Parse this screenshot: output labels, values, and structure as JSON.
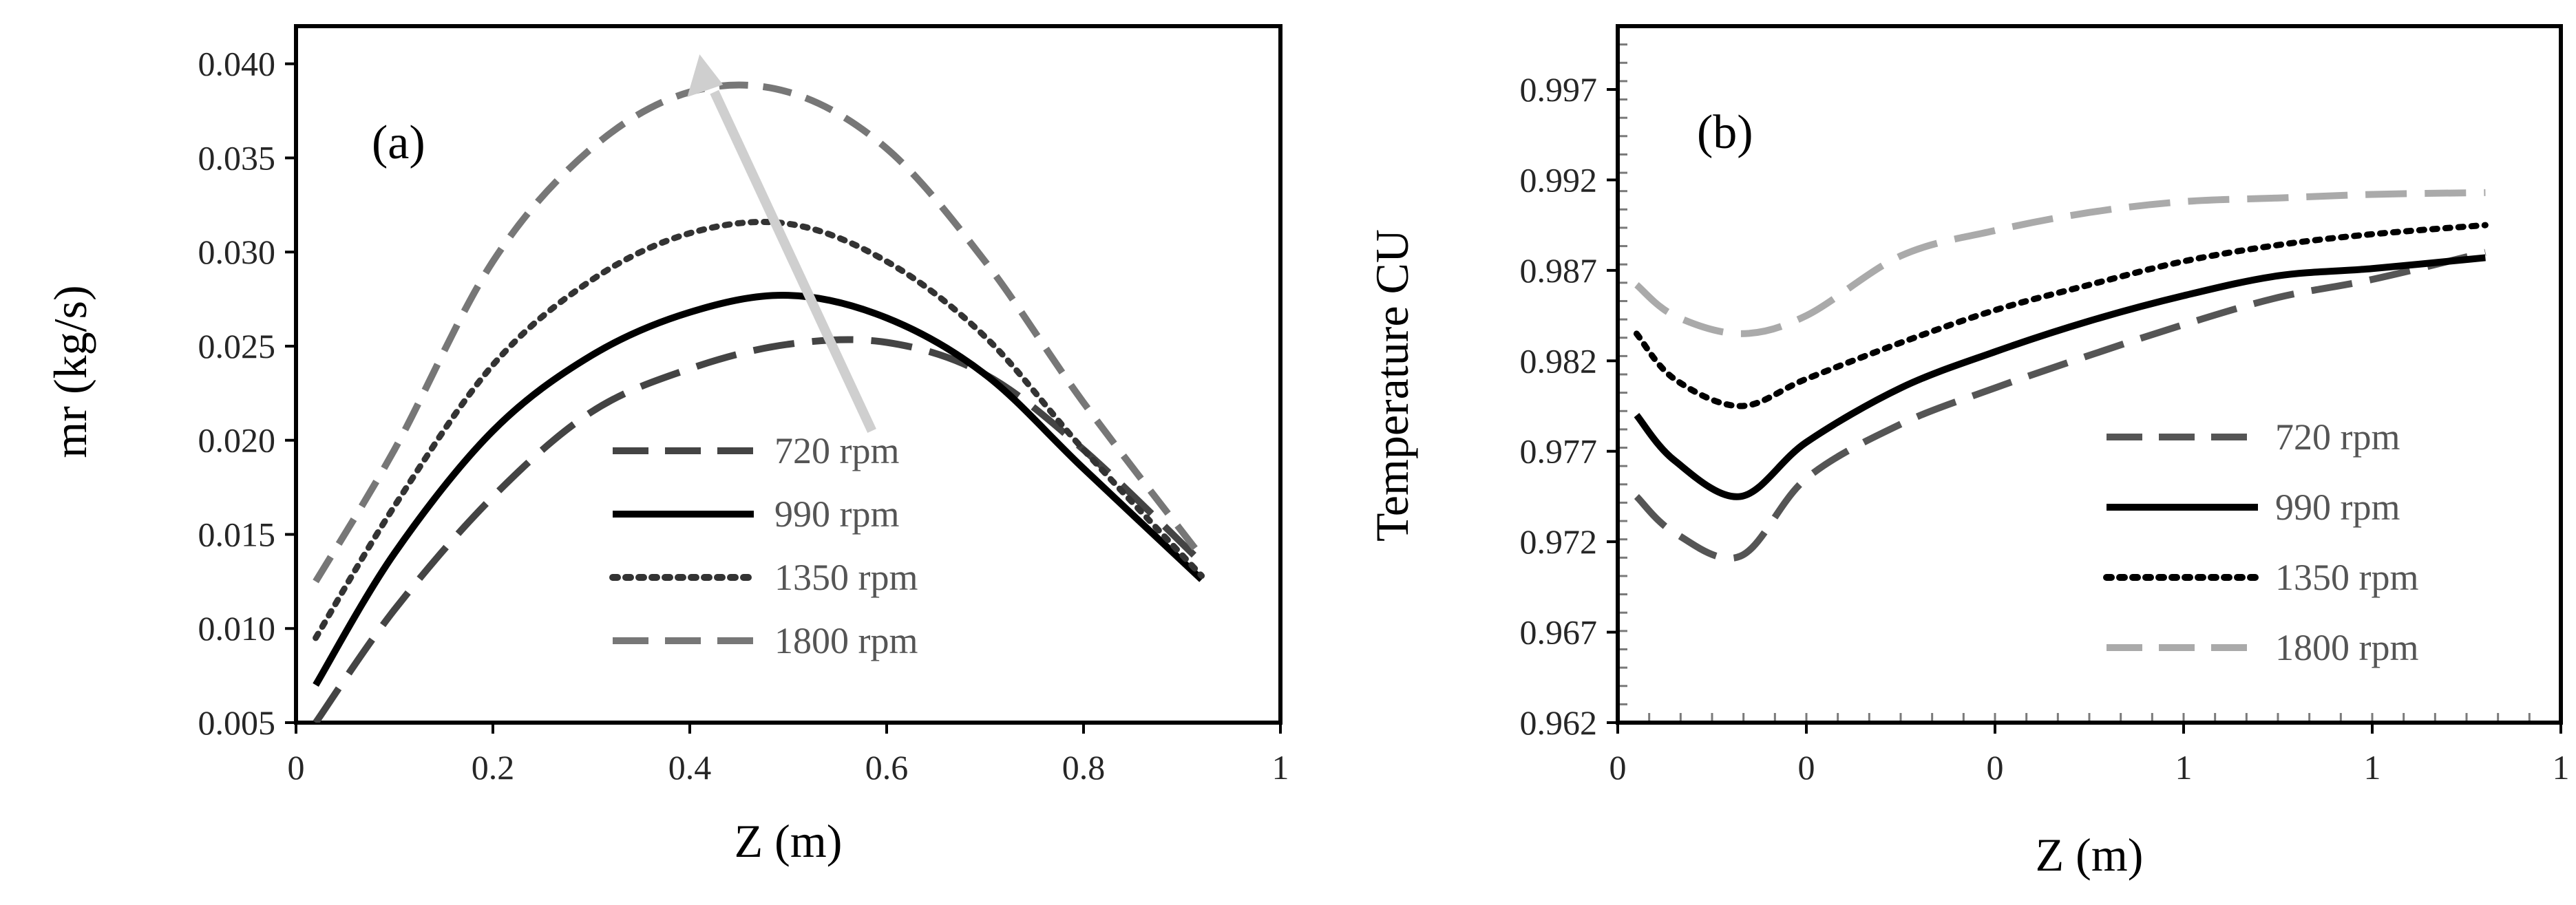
{
  "chart_data": [
    {
      "type": "line",
      "panel_label": "(a)",
      "xlabel": "Z (m)",
      "ylabel": "mr (kg/s)",
      "xlim": [
        0,
        1
      ],
      "ylim": [
        0.005,
        0.042
      ],
      "xticks": [
        0,
        0.2,
        0.4,
        0.6,
        0.8,
        1
      ],
      "xtick_labels": [
        "0",
        "0.2",
        "0.4",
        "0.6",
        "0.8",
        "1"
      ],
      "yticks": [
        0.005,
        0.01,
        0.015,
        0.02,
        0.025,
        0.03,
        0.035,
        0.04
      ],
      "ytick_labels": [
        "0.005",
        "0.010",
        "0.015",
        "0.020",
        "0.025",
        "0.030",
        "0.035",
        "0.040"
      ],
      "grid": false,
      "legend_position": "center-right",
      "annotation": "arrow indicating increasing rotational speed",
      "series": [
        {
          "name": "720 rpm",
          "color": "#444444",
          "style": "long-dash",
          "x": [
            0.02,
            0.1,
            0.2,
            0.3,
            0.4,
            0.5,
            0.6,
            0.7,
            0.8,
            0.92
          ],
          "y": [
            0.005,
            0.011,
            0.017,
            0.0215,
            0.0238,
            0.0251,
            0.0252,
            0.0235,
            0.0195,
            0.0135
          ]
        },
        {
          "name": "990 rpm",
          "color": "#000000",
          "style": "solid",
          "x": [
            0.02,
            0.1,
            0.2,
            0.3,
            0.4,
            0.5,
            0.6,
            0.7,
            0.8,
            0.92
          ],
          "y": [
            0.007,
            0.014,
            0.0205,
            0.0245,
            0.0268,
            0.0277,
            0.0265,
            0.0235,
            0.0185,
            0.0126
          ]
        },
        {
          "name": "1350 rpm",
          "color": "#333333",
          "style": "dotted",
          "x": [
            0.02,
            0.1,
            0.2,
            0.3,
            0.4,
            0.5,
            0.6,
            0.7,
            0.8,
            0.92
          ],
          "y": [
            0.0095,
            0.0165,
            0.024,
            0.0285,
            0.031,
            0.0315,
            0.0295,
            0.0255,
            0.0195,
            0.0128
          ]
        },
        {
          "name": "1800 rpm",
          "color": "#777777",
          "style": "dash",
          "x": [
            0.02,
            0.1,
            0.2,
            0.3,
            0.4,
            0.5,
            0.6,
            0.7,
            0.8,
            0.92
          ],
          "y": [
            0.0125,
            0.0195,
            0.0295,
            0.0355,
            0.0385,
            0.0385,
            0.0355,
            0.0295,
            0.022,
            0.0138
          ]
        }
      ]
    },
    {
      "type": "line",
      "panel_label": "(b)",
      "xlabel": "Z (m)",
      "ylabel": "Temperature CU",
      "xlim": [
        0,
        1
      ],
      "ylim": [
        0.962,
        1.0005
      ],
      "xticks": [
        0,
        0.2,
        0.4,
        0.6,
        0.8,
        1
      ],
      "xtick_labels": [
        "0",
        "0",
        "0",
        "1",
        "1",
        "1"
      ],
      "yticks": [
        0.962,
        0.967,
        0.972,
        0.977,
        0.982,
        0.987,
        0.992,
        0.997
      ],
      "ytick_labels": [
        "0.962",
        "0.967",
        "0.972",
        "0.977",
        "0.982",
        "0.987",
        "0.992",
        "0.997"
      ],
      "grid": false,
      "legend_position": "center-right",
      "series": [
        {
          "name": "720 rpm",
          "color": "#555555",
          "style": "long-dash",
          "x": [
            0.02,
            0.06,
            0.13,
            0.2,
            0.3,
            0.4,
            0.5,
            0.6,
            0.7,
            0.8,
            0.92
          ],
          "y": [
            0.9745,
            0.9725,
            0.9712,
            0.9755,
            0.9785,
            0.9805,
            0.9823,
            0.984,
            0.9855,
            0.9865,
            0.988
          ]
        },
        {
          "name": "990 rpm",
          "color": "#000000",
          "style": "solid",
          "x": [
            0.02,
            0.06,
            0.13,
            0.2,
            0.3,
            0.4,
            0.5,
            0.6,
            0.7,
            0.8,
            0.92
          ],
          "y": [
            0.979,
            0.9765,
            0.9745,
            0.9775,
            0.9805,
            0.9825,
            0.9842,
            0.9856,
            0.9867,
            0.9871,
            0.9877
          ]
        },
        {
          "name": "1350 rpm",
          "color": "#000000",
          "style": "dotted",
          "x": [
            0.02,
            0.06,
            0.13,
            0.2,
            0.3,
            0.4,
            0.5,
            0.6,
            0.7,
            0.8,
            0.92
          ],
          "y": [
            0.9835,
            0.981,
            0.9795,
            0.981,
            0.983,
            0.9848,
            0.9862,
            0.9875,
            0.9884,
            0.989,
            0.9895
          ]
        },
        {
          "name": "1800 rpm",
          "color": "#aaaaaa",
          "style": "long-dash",
          "x": [
            0.02,
            0.06,
            0.13,
            0.2,
            0.3,
            0.4,
            0.5,
            0.6,
            0.7,
            0.8,
            0.92
          ],
          "y": [
            0.9862,
            0.9845,
            0.9835,
            0.9845,
            0.9878,
            0.9892,
            0.9902,
            0.9908,
            0.991,
            0.9912,
            0.9913
          ]
        }
      ]
    }
  ]
}
